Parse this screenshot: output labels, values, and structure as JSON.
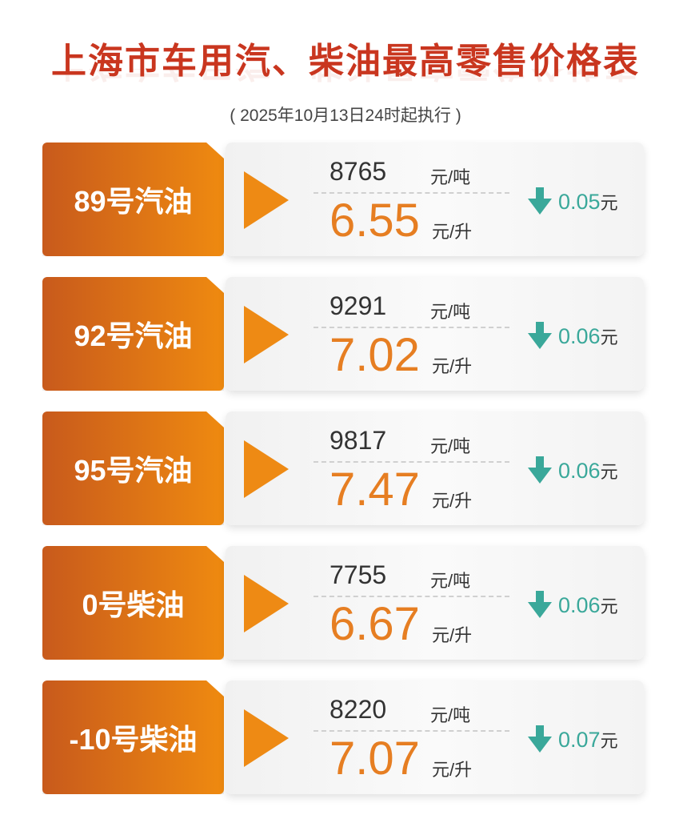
{
  "title": "上海市车用汽、柴油最高零售价格表",
  "subtitle": "( 2025年10月13日24时起执行 )",
  "units": {
    "per_ton": "元/吨",
    "per_litre": "元/升",
    "yuan": "元"
  },
  "colors": {
    "title": "#c9361f",
    "accent_orange": "#e67e22",
    "decrease_green": "#3aa89a"
  },
  "rows": [
    {
      "fuel": "89号汽油",
      "price_per_ton": "8765",
      "price_per_litre": "6.55",
      "change": "0.05",
      "direction": "down"
    },
    {
      "fuel": "92号汽油",
      "price_per_ton": "9291",
      "price_per_litre": "7.02",
      "change": "0.06",
      "direction": "down"
    },
    {
      "fuel": "95号汽油",
      "price_per_ton": "9817",
      "price_per_litre": "7.47",
      "change": "0.06",
      "direction": "down"
    },
    {
      "fuel": "0号柴油",
      "price_per_ton": "7755",
      "price_per_litre": "6.67",
      "change": "0.06",
      "direction": "down"
    },
    {
      "fuel": "-10号柴油",
      "price_per_ton": "8220",
      "price_per_litre": "7.07",
      "change": "0.07",
      "direction": "down"
    }
  ]
}
